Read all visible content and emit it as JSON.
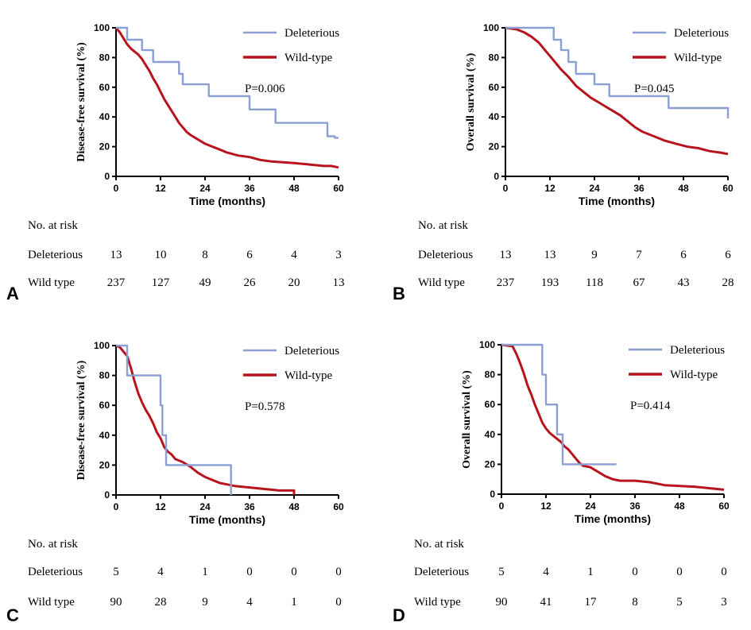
{
  "colors": {
    "deleterious": "#8c9fd4",
    "wild_type": "#b8141e",
    "axis": "#000000"
  },
  "chart_data": [
    {
      "panel_label": "A",
      "type": "line",
      "ylabel": "Disease-free survival (%)",
      "xlabel": "Time (months)",
      "xlim": [
        0,
        60
      ],
      "ylim": [
        0,
        100
      ],
      "xticks": [
        "0",
        "12",
        "24",
        "36",
        "48",
        "60"
      ],
      "yticks": [
        "0",
        "20",
        "40",
        "60",
        "80",
        "100"
      ],
      "legend": [
        "Deleterious",
        "Wild-type"
      ],
      "p_value": "P=0.006",
      "series": [
        {
          "name": "Deleterious",
          "points": [
            [
              0,
              100
            ],
            [
              3,
              100
            ],
            [
              3,
              92
            ],
            [
              7,
              92
            ],
            [
              7,
              85
            ],
            [
              10,
              85
            ],
            [
              10,
              77
            ],
            [
              17,
              77
            ],
            [
              17,
              69
            ],
            [
              18,
              69
            ],
            [
              18,
              62
            ],
            [
              25,
              62
            ],
            [
              25,
              54
            ],
            [
              36,
              54
            ],
            [
              36,
              45
            ],
            [
              43,
              45
            ],
            [
              43,
              36
            ],
            [
              57,
              36
            ],
            [
              57,
              27
            ],
            [
              59,
              27
            ],
            [
              59,
              26
            ],
            [
              60,
              26
            ]
          ]
        },
        {
          "name": "Wild-type",
          "points": [
            [
              0,
              100
            ],
            [
              1,
              97
            ],
            [
              2,
              93
            ],
            [
              3,
              89
            ],
            [
              4,
              86
            ],
            [
              5,
              84
            ],
            [
              6,
              82
            ],
            [
              7,
              79
            ],
            [
              8,
              75
            ],
            [
              9,
              71
            ],
            [
              10,
              66
            ],
            [
              11,
              62
            ],
            [
              12,
              57
            ],
            [
              13,
              52
            ],
            [
              14,
              48
            ],
            [
              15,
              44
            ],
            [
              16,
              40
            ],
            [
              17,
              36
            ],
            [
              18,
              33
            ],
            [
              19,
              30
            ],
            [
              20,
              28
            ],
            [
              22,
              25
            ],
            [
              24,
              22
            ],
            [
              26,
              20
            ],
            [
              28,
              18
            ],
            [
              30,
              16
            ],
            [
              33,
              14
            ],
            [
              36,
              13
            ],
            [
              39,
              11
            ],
            [
              42,
              10
            ],
            [
              48,
              9
            ],
            [
              52,
              8
            ],
            [
              56,
              7
            ],
            [
              58,
              7
            ],
            [
              60,
              6
            ]
          ]
        }
      ],
      "risk_table": {
        "title": "No. at risk",
        "rows": [
          {
            "label": "Deleterious",
            "values": [
              "13",
              "10",
              "8",
              "6",
              "4",
              "3"
            ]
          },
          {
            "label": "Wild type",
            "values": [
              "237",
              "127",
              "49",
              "26",
              "20",
              "13"
            ]
          }
        ]
      }
    },
    {
      "panel_label": "B",
      "type": "line",
      "ylabel": "Overall survival (%)",
      "xlabel": "Time (months)",
      "xlim": [
        0,
        60
      ],
      "ylim": [
        0,
        100
      ],
      "xticks": [
        "0",
        "12",
        "24",
        "36",
        "48",
        "60"
      ],
      "yticks": [
        "0",
        "20",
        "40",
        "60",
        "80",
        "100"
      ],
      "legend": [
        "Deleterious",
        "Wild-type"
      ],
      "p_value": "P=0.045",
      "series": [
        {
          "name": "Deleterious",
          "points": [
            [
              0,
              100
            ],
            [
              13,
              100
            ],
            [
              13,
              92
            ],
            [
              15,
              92
            ],
            [
              15,
              85
            ],
            [
              17,
              85
            ],
            [
              17,
              77
            ],
            [
              19,
              77
            ],
            [
              19,
              69
            ],
            [
              24,
              69
            ],
            [
              24,
              62
            ],
            [
              28,
              62
            ],
            [
              28,
              54
            ],
            [
              44,
              54
            ],
            [
              44,
              46
            ],
            [
              60,
              46
            ],
            [
              60,
              39
            ]
          ]
        },
        {
          "name": "Wild-type",
          "points": [
            [
              0,
              100
            ],
            [
              3,
              99
            ],
            [
              5,
              97
            ],
            [
              7,
              94
            ],
            [
              9,
              90
            ],
            [
              11,
              84
            ],
            [
              13,
              78
            ],
            [
              15,
              72
            ],
            [
              17,
              67
            ],
            [
              19,
              61
            ],
            [
              21,
              57
            ],
            [
              23,
              53
            ],
            [
              25,
              50
            ],
            [
              27,
              47
            ],
            [
              29,
              44
            ],
            [
              31,
              41
            ],
            [
              33,
              37
            ],
            [
              35,
              33
            ],
            [
              37,
              30
            ],
            [
              40,
              27
            ],
            [
              43,
              24
            ],
            [
              46,
              22
            ],
            [
              49,
              20
            ],
            [
              52,
              19
            ],
            [
              55,
              17
            ],
            [
              58,
              16
            ],
            [
              60,
              15
            ]
          ]
        }
      ],
      "risk_table": {
        "title": "No. at risk",
        "rows": [
          {
            "label": "Deleterious",
            "values": [
              "13",
              "13",
              "9",
              "7",
              "6",
              "6"
            ]
          },
          {
            "label": "Wild type",
            "values": [
              "237",
              "193",
              "118",
              "67",
              "43",
              "28"
            ]
          }
        ]
      }
    },
    {
      "panel_label": "C",
      "type": "line",
      "ylabel": "Disease-free survival (%)",
      "xlabel": "Time (months)",
      "xlim": [
        0,
        60
      ],
      "ylim": [
        0,
        100
      ],
      "xticks": [
        "0",
        "12",
        "24",
        "36",
        "48",
        "60"
      ],
      "yticks": [
        "0",
        "20",
        "40",
        "60",
        "80",
        "100"
      ],
      "legend": [
        "Deleterious",
        "Wild-type"
      ],
      "p_value": "P=0.578",
      "series": [
        {
          "name": "Deleterious",
          "points": [
            [
              0,
              100
            ],
            [
              3,
              100
            ],
            [
              3,
              80
            ],
            [
              12,
              80
            ],
            [
              12,
              60
            ],
            [
              12.5,
              60
            ],
            [
              12.5,
              40
            ],
            [
              13.5,
              40
            ],
            [
              13.5,
              20
            ],
            [
              31,
              20
            ],
            [
              31,
              0
            ]
          ]
        },
        {
          "name": "Wild-type",
          "points": [
            [
              0,
              100
            ],
            [
              1,
              99
            ],
            [
              2,
              96
            ],
            [
              3,
              93
            ],
            [
              4,
              85
            ],
            [
              5,
              76
            ],
            [
              6,
              68
            ],
            [
              7,
              62
            ],
            [
              8,
              57
            ],
            [
              9,
              53
            ],
            [
              10,
              48
            ],
            [
              11,
              42
            ],
            [
              12,
              38
            ],
            [
              13,
              32
            ],
            [
              14,
              29
            ],
            [
              15,
              27
            ],
            [
              16,
              24
            ],
            [
              18,
              22
            ],
            [
              20,
              19
            ],
            [
              22,
              15
            ],
            [
              24,
              12
            ],
            [
              26,
              10
            ],
            [
              28,
              8
            ],
            [
              30,
              7
            ],
            [
              32,
              6
            ],
            [
              36,
              5
            ],
            [
              40,
              4
            ],
            [
              44,
              3
            ],
            [
              48,
              3
            ],
            [
              48,
              0
            ]
          ]
        }
      ],
      "risk_table": {
        "title": "No. at risk",
        "rows": [
          {
            "label": "Deleterious",
            "values": [
              "5",
              "4",
              "1",
              "0",
              "0",
              "0"
            ]
          },
          {
            "label": "Wild type",
            "values": [
              "90",
              "28",
              "9",
              "4",
              "1",
              "0"
            ]
          }
        ]
      }
    },
    {
      "panel_label": "D",
      "type": "line",
      "ylabel": "Overall survival (%)",
      "xlabel": "Time (months)",
      "xlim": [
        0,
        60
      ],
      "ylim": [
        0,
        100
      ],
      "xticks": [
        "0",
        "12",
        "24",
        "36",
        "48",
        "60"
      ],
      "yticks": [
        "0",
        "20",
        "40",
        "60",
        "80",
        "100"
      ],
      "legend": [
        "Deleterious",
        "Wild-type"
      ],
      "p_value": "P=0.414",
      "series": [
        {
          "name": "Deleterious",
          "points": [
            [
              0,
              100
            ],
            [
              11,
              100
            ],
            [
              11,
              80
            ],
            [
              12,
              80
            ],
            [
              12,
              60
            ],
            [
              15,
              60
            ],
            [
              15,
              40
            ],
            [
              16.5,
              40
            ],
            [
              16.5,
              20
            ],
            [
              31,
              20
            ]
          ]
        },
        {
          "name": "Wild-type",
          "points": [
            [
              0,
              100
            ],
            [
              3,
              99
            ],
            [
              4,
              94
            ],
            [
              5,
              88
            ],
            [
              6,
              81
            ],
            [
              7,
              73
            ],
            [
              8,
              67
            ],
            [
              9,
              60
            ],
            [
              10,
              54
            ],
            [
              11,
              48
            ],
            [
              12,
              44
            ],
            [
              13,
              41
            ],
            [
              14,
              39
            ],
            [
              15,
              37
            ],
            [
              16,
              35
            ],
            [
              17,
              32
            ],
            [
              18,
              30
            ],
            [
              19,
              27
            ],
            [
              20,
              24
            ],
            [
              21,
              21
            ],
            [
              22,
              19
            ],
            [
              24,
              18
            ],
            [
              26,
              15
            ],
            [
              28,
              12
            ],
            [
              30,
              10
            ],
            [
              32,
              9
            ],
            [
              36,
              9
            ],
            [
              40,
              8
            ],
            [
              44,
              6
            ],
            [
              52,
              5
            ],
            [
              56,
              4
            ],
            [
              60,
              3
            ]
          ]
        }
      ],
      "risk_table": {
        "title": "No. at risk",
        "rows": [
          {
            "label": "Deleterious",
            "values": [
              "5",
              "4",
              "1",
              "0",
              "0",
              "0"
            ]
          },
          {
            "label": "Wild type",
            "values": [
              "90",
              "41",
              "17",
              "8",
              "5",
              "3"
            ]
          }
        ]
      }
    }
  ]
}
